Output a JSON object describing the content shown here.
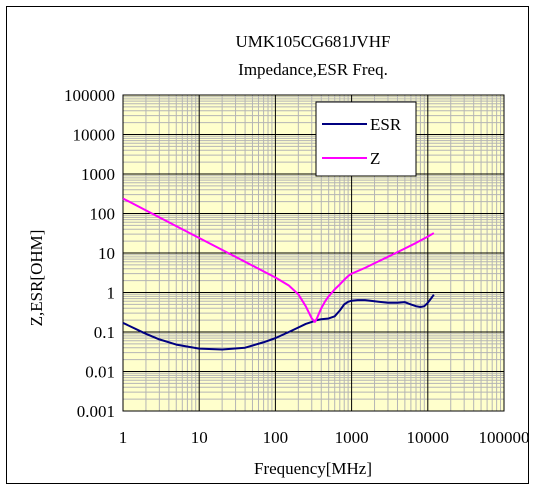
{
  "chart_data": {
    "type": "line",
    "title": "UMK105CG681JVHF",
    "subtitle": "Impedance,ESR Freq.",
    "xlabel": "Frequency[MHz]",
    "ylabel": "Z,ESR[OHM]",
    "xscale": "log",
    "yscale": "log",
    "xlim": [
      1,
      100000
    ],
    "ylim": [
      0.001,
      100000
    ],
    "x_ticks": [
      "1",
      "10",
      "100",
      "1000",
      "10000",
      "100000"
    ],
    "y_ticks": [
      "0.001",
      "0.01",
      "0.1",
      "1",
      "10",
      "100",
      "1000",
      "10000",
      "100000"
    ],
    "grid": true,
    "plot_background": "#ffffcc",
    "legend_position": "top-right",
    "series": [
      {
        "name": "ESR",
        "color": "#000080",
        "x": [
          1,
          2,
          3,
          5,
          10,
          20,
          40,
          70,
          100,
          150,
          200,
          250,
          300,
          350,
          400,
          500,
          600,
          700,
          800,
          900,
          1000,
          1200,
          1500,
          2000,
          3000,
          4000,
          5000,
          6000,
          7000,
          8000,
          9000,
          10000,
          11000,
          12000
        ],
        "values": [
          0.17,
          0.09,
          0.065,
          0.048,
          0.038,
          0.036,
          0.04,
          0.055,
          0.07,
          0.1,
          0.13,
          0.16,
          0.18,
          0.2,
          0.21,
          0.22,
          0.25,
          0.35,
          0.5,
          0.58,
          0.62,
          0.64,
          0.64,
          0.6,
          0.55,
          0.55,
          0.57,
          0.5,
          0.45,
          0.43,
          0.45,
          0.55,
          0.7,
          0.88
        ]
      },
      {
        "name": "Z",
        "color": "#ff00ff",
        "x": [
          1,
          2,
          5,
          10,
          20,
          50,
          100,
          150,
          200,
          250,
          300,
          330,
          350,
          380,
          400,
          450,
          500,
          600,
          700,
          800,
          900,
          1000,
          1500,
          2000,
          3000,
          5000,
          7000,
          10000,
          12000
        ],
        "values": [
          240,
          120,
          48,
          24,
          12,
          4.8,
          2.4,
          1.5,
          0.9,
          0.45,
          0.22,
          0.18,
          0.22,
          0.32,
          0.4,
          0.6,
          0.8,
          1.2,
          1.6,
          2.1,
          2.6,
          3.0,
          4.2,
          5.5,
          8.0,
          13.0,
          18.0,
          26.0,
          32.0
        ]
      }
    ]
  }
}
